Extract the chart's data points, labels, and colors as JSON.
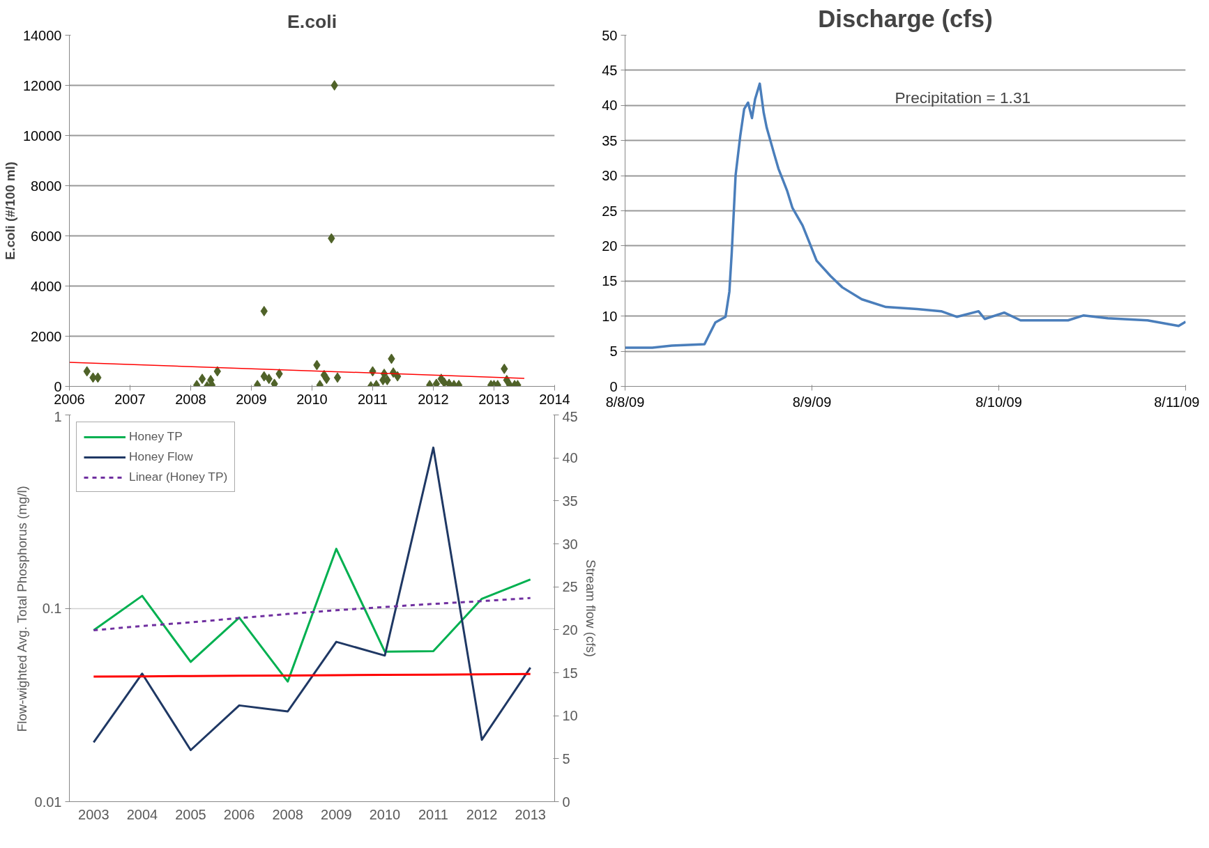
{
  "chart_data": [
    {
      "type": "scatter",
      "title": "E.coli",
      "ylabel": "E.coli (#/100 ml)",
      "xlim": [
        2006,
        2014
      ],
      "xticks": [
        2006,
        2007,
        2008,
        2009,
        2010,
        2011,
        2012,
        2013,
        2014
      ],
      "ylim": [
        0,
        14000
      ],
      "yticks": [
        0,
        2000,
        4000,
        6000,
        8000,
        10000,
        12000,
        14000
      ],
      "grid": "y",
      "marker": "diamond",
      "series": [
        {
          "color": "#4f6228",
          "x": [
            2006.29,
            2006.39,
            2006.47,
            2008.1,
            2008.19,
            2008.27,
            2008.33,
            2008.35,
            2008.44,
            2009.1,
            2009.21,
            2009.21,
            2009.29,
            2009.38,
            2009.46,
            2010.08,
            2010.13,
            2010.2,
            2010.24,
            2010.32,
            2010.37,
            2010.42,
            2010.97,
            2011.0,
            2011.06,
            2011.17,
            2011.19,
            2011.24,
            2011.31,
            2011.34,
            2011.41,
            2011.94,
            2012.05,
            2012.13,
            2012.18,
            2012.26,
            2012.34,
            2012.42,
            2012.95,
            2013.0,
            2013.06,
            2013.17,
            2013.21,
            2013.26,
            2013.34,
            2013.39
          ],
          "values": [
            600,
            350,
            350,
            50,
            300,
            0,
            250,
            50,
            600,
            50,
            3000,
            400,
            300,
            100,
            500,
            850,
            50,
            450,
            300,
            5900,
            12000,
            350,
            0,
            600,
            50,
            250,
            500,
            250,
            1100,
            550,
            400,
            50,
            100,
            300,
            150,
            100,
            50,
            50,
            50,
            50,
            50,
            700,
            250,
            50,
            50,
            50
          ]
        },
        {
          "type": "line",
          "color": "#ff0000",
          "x": [
            2006,
            2013.5
          ],
          "values": [
            960,
            320
          ],
          "marker": "none"
        }
      ]
    },
    {
      "type": "line",
      "title": "Discharge (cfs)",
      "xlim": [
        "2009-08-08",
        "2009-08-11"
      ],
      "xticks": [
        {
          "value": "2009-08-08",
          "label": "8/8/09"
        },
        {
          "value": "2009-08-09",
          "label": "8/9/09"
        },
        {
          "value": "2009-08-10",
          "label": "8/10/09"
        },
        {
          "value": "2009-08-11",
          "label": "8/11/09"
        }
      ],
      "ylim": [
        0,
        50
      ],
      "yticks": [
        0,
        5,
        10,
        15,
        20,
        25,
        30,
        35,
        40,
        45,
        50
      ],
      "grid": "y",
      "annotations": [
        "Precipitation = 1.31"
      ],
      "series": [
        {
          "color": "#4a7ebb",
          "x": [
            "2009-08-08T00:00",
            "2009-08-08T03:30",
            "2009-08-08T06:00",
            "2009-08-08T10:12",
            "2009-08-08T10:36",
            "2009-08-08T11:36",
            "2009-08-08T12:24",
            "2009-08-08T12:54",
            "2009-08-08T13:24",
            "2009-08-08T13:42",
            "2009-08-08T14:12",
            "2009-08-08T14:48",
            "2009-08-08T15:18",
            "2009-08-08T15:48",
            "2009-08-08T16:18",
            "2009-08-08T16:42",
            "2009-08-08T17:18",
            "2009-08-08T17:48",
            "2009-08-08T18:12",
            "2009-08-08T19:12",
            "2009-08-08T19:42",
            "2009-08-08T20:48",
            "2009-08-08T21:30",
            "2009-08-08T22:48",
            "2009-08-08T23:36",
            "2009-08-09T00:36",
            "2009-08-09T02:24",
            "2009-08-09T03:54",
            "2009-08-09T06:24",
            "2009-08-09T09:30",
            "2009-08-09T13:30",
            "2009-08-09T16:36",
            "2009-08-09T18:36",
            "2009-08-09T21:24",
            "2009-08-09T22:12",
            "2009-08-10T00:42",
            "2009-08-10T02:48",
            "2009-08-10T08:54",
            "2009-08-10T10:54",
            "2009-08-10T14:00",
            "2009-08-10T19:06",
            "2009-08-10T23:06",
            "2009-08-11T00:00"
          ],
          "values": [
            5.5,
            5.5,
            5.8,
            6.0,
            6.9,
            9.1,
            9.6,
            9.9,
            13.5,
            19.0,
            30.1,
            35.7,
            39.5,
            40.4,
            38.2,
            40.9,
            43.1,
            39.0,
            36.8,
            32.9,
            31.0,
            27.9,
            25.4,
            22.9,
            20.7,
            17.9,
            15.7,
            14.1,
            12.4,
            11.3,
            11.0,
            10.7,
            9.9,
            10.7,
            9.6,
            10.5,
            9.4,
            9.4,
            10.1,
            9.7,
            9.4,
            8.6,
            9.2
          ]
        }
      ]
    },
    {
      "type": "line",
      "log": "y",
      "ylabel": "Flow-wighted Avg. Total Phosphorus (mg/l)",
      "y2label": "Stream flow (cfs)",
      "categories": [
        "2003",
        "2004",
        "2005",
        "2006",
        "2008",
        "2009",
        "2010",
        "2011",
        "2012",
        "2013"
      ],
      "ylim": [
        0.01,
        1
      ],
      "yticks": [
        0.01,
        0.1,
        1
      ],
      "y2lim": [
        0,
        45
      ],
      "y2ticks": [
        0,
        5,
        10,
        15,
        20,
        25,
        30,
        35,
        40,
        45
      ],
      "grid": "y",
      "legend": "top left",
      "series": [
        {
          "name": "Honey TP",
          "color": "#00b050",
          "values": [
            0.077,
            0.116,
            0.0528,
            0.0895,
            0.0418,
            0.203,
            0.0597,
            0.06,
            0.112,
            0.141
          ]
        },
        {
          "name": "Honey Flow",
          "color": "#1f3864",
          "axis": "y2",
          "values": [
            6.9,
            14.9,
            6.0,
            11.2,
            10.5,
            18.6,
            17.0,
            41.2,
            7.2,
            15.6
          ]
        },
        {
          "name": "Linear (Honey TP)",
          "color": "#7030a0",
          "line_style": "dashed",
          "values": [
            0.077,
            0.081,
            0.0846,
            0.089,
            0.0935,
            0.0977,
            0.1016,
            0.1054,
            0.1089,
            0.113
          ]
        },
        {
          "color": "#ff0000",
          "axis": "y2",
          "values": [
            14.55,
            14.58,
            14.62,
            14.65,
            14.68,
            14.72,
            14.75,
            14.78,
            14.82,
            14.85
          ]
        }
      ]
    }
  ]
}
